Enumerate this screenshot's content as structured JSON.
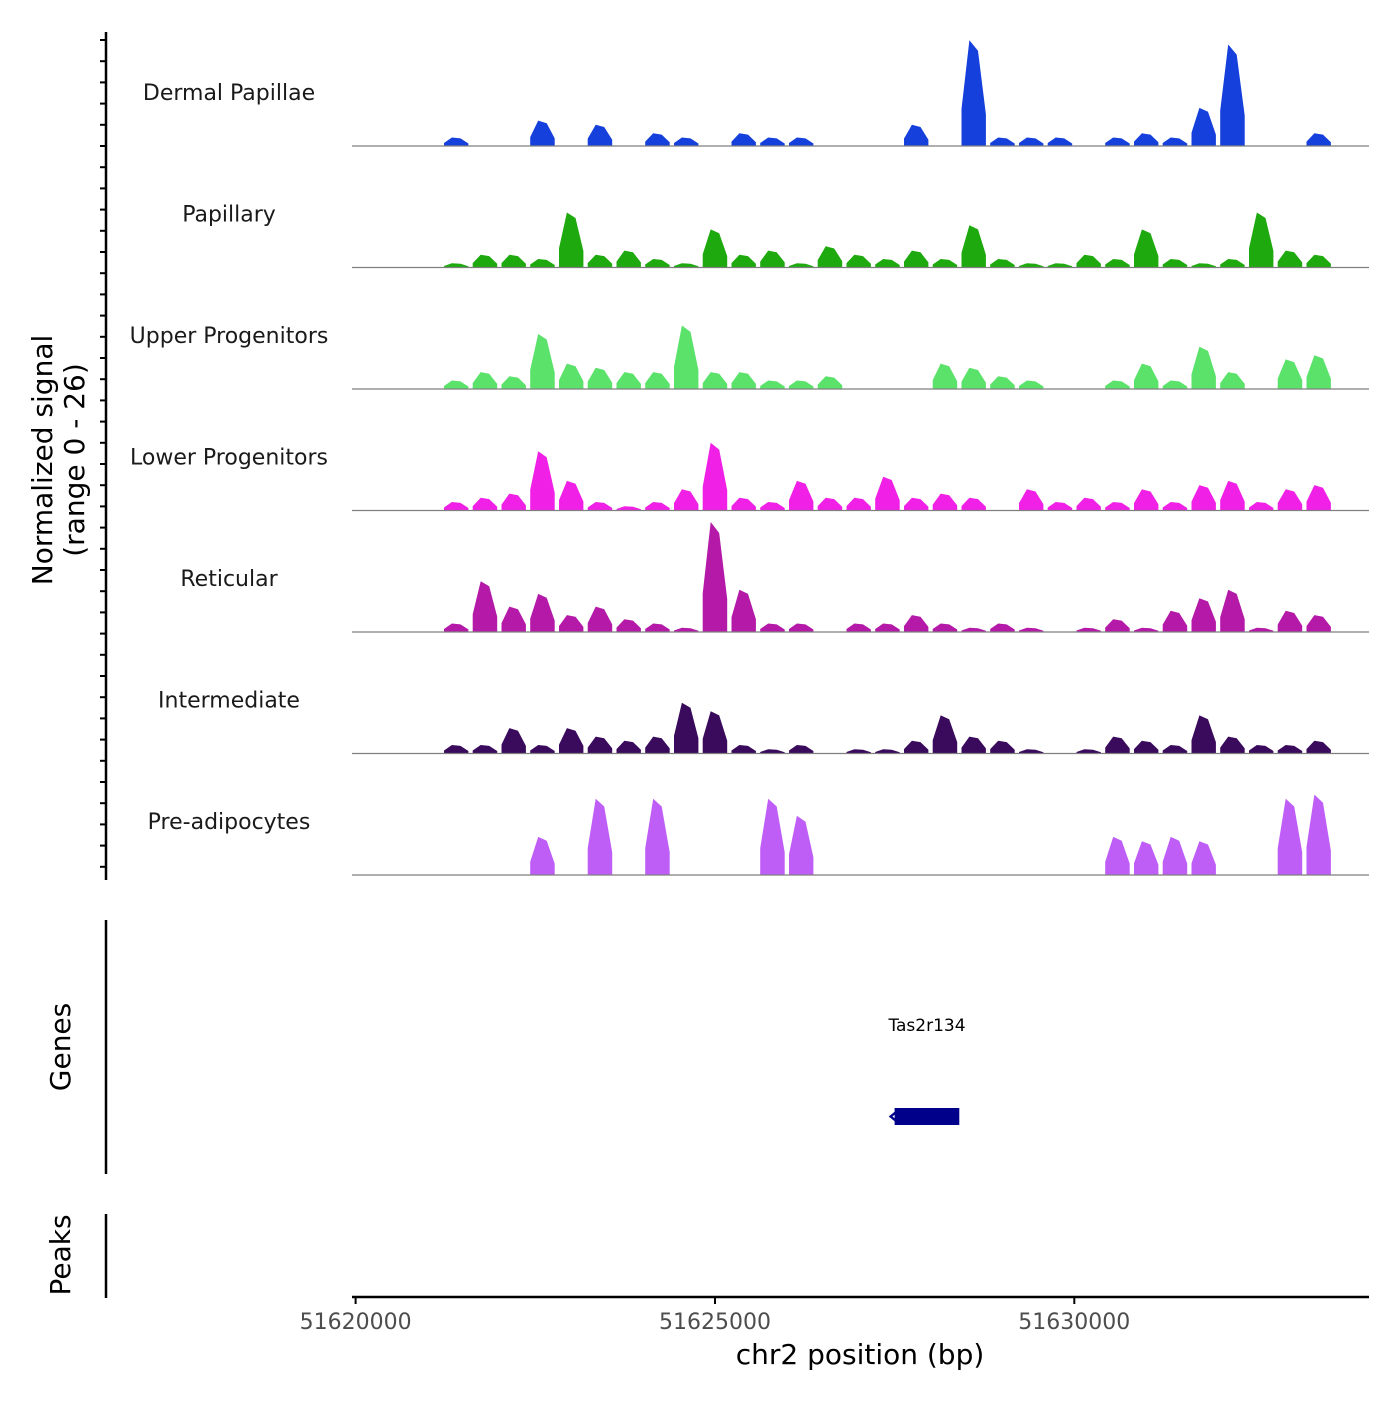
{
  "chart_data": {
    "type": "area",
    "title": "",
    "xlabel": "chr2 position (bp)",
    "ylabel": "Normalized signal",
    "ylabel_range": "(range 0 - 26)",
    "xlim": [
      51619950,
      51634100
    ],
    "ylim": [
      0,
      26
    ],
    "x_ticks": [
      51620000,
      51625000,
      51630000
    ],
    "x_tick_labels": [
      "51620000",
      "51625000",
      "51630000"
    ],
    "bins": [
      51621000,
      51621400,
      51621800,
      51622200,
      51622600,
      51623000,
      51623400,
      51623800,
      51624200,
      51624600,
      51625000,
      51625400,
      51625800,
      51626200,
      51626600,
      51627000,
      51627400,
      51627800,
      51628200,
      51628600,
      51629000,
      51629400,
      51629800,
      51630200,
      51630600,
      51631000,
      51631400,
      51631800,
      51632200,
      51632600,
      51633000,
      51633400
    ],
    "series": [
      {
        "name": "Dermal Papillae",
        "color": "#1540DC",
        "values": [
          0,
          2,
          0,
          0,
          6,
          0,
          5,
          0,
          3,
          2,
          0,
          3,
          2,
          2,
          0,
          0,
          0,
          5,
          0,
          25,
          2,
          2,
          2,
          0,
          2,
          3,
          2,
          9,
          24,
          0,
          0,
          3
        ]
      },
      {
        "name": "Papillary",
        "color": "#1EAA0E",
        "values": [
          0,
          1,
          3,
          3,
          2,
          13,
          3,
          4,
          2,
          1,
          9,
          3,
          4,
          1,
          5,
          3,
          2,
          4,
          2,
          10,
          2,
          1,
          1,
          3,
          2,
          9,
          2,
          1,
          2,
          13,
          4,
          3
        ]
      },
      {
        "name": "Upper Progenitors",
        "color": "#5BE26A",
        "values": [
          0,
          2,
          4,
          3,
          13,
          6,
          5,
          4,
          4,
          15,
          4,
          4,
          2,
          2,
          3,
          0,
          0,
          0,
          6,
          5,
          3,
          2,
          0,
          0,
          2,
          6,
          2,
          10,
          4,
          0,
          7,
          8
        ]
      },
      {
        "name": "Lower Progenitors",
        "color": "#F020E6",
        "values": [
          0,
          2,
          3,
          4,
          14,
          7,
          2,
          1,
          2,
          5,
          16,
          3,
          2,
          7,
          3,
          3,
          8,
          3,
          4,
          3,
          0,
          5,
          2,
          3,
          2,
          5,
          2,
          6,
          7,
          2,
          5,
          6
        ]
      },
      {
        "name": "Reticular",
        "color": "#B419A8",
        "values": [
          0,
          2,
          12,
          6,
          9,
          4,
          6,
          3,
          2,
          1,
          26,
          10,
          2,
          2,
          0,
          2,
          2,
          4,
          2,
          1,
          2,
          1,
          0,
          1,
          3,
          1,
          5,
          8,
          10,
          1,
          5,
          4
        ]
      },
      {
        "name": "Intermediate",
        "color": "#3A0A5C",
        "values": [
          0,
          2,
          2,
          6,
          2,
          6,
          4,
          3,
          4,
          12,
          10,
          2,
          1,
          2,
          0,
          1,
          1,
          3,
          9,
          4,
          3,
          1,
          0,
          1,
          4,
          3,
          2,
          9,
          4,
          2,
          2,
          3
        ]
      },
      {
        "name": "Pre-adipocytes",
        "color": "#BF5EF7",
        "values": [
          0,
          0,
          0,
          0,
          9,
          0,
          18,
          0,
          18,
          0,
          0,
          0,
          18,
          14,
          0,
          0,
          0,
          0,
          0,
          0,
          0,
          0,
          0,
          0,
          9,
          8,
          9,
          8,
          0,
          0,
          18,
          19
        ]
      }
    ],
    "panels": {
      "genes_label": "Genes",
      "peaks_label": "Peaks"
    },
    "genes": [
      {
        "name": "Tas2r134",
        "start": 51627500,
        "end": 51628400,
        "strand": "-",
        "color": "#00008B"
      }
    ],
    "peaks": []
  }
}
